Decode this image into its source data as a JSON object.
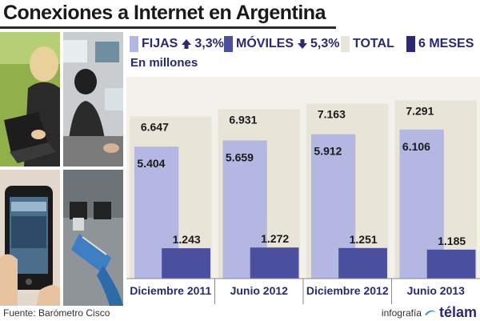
{
  "title": "Conexiones a Internet en Argentina",
  "subtitle": "En millones",
  "legend": {
    "fijas": {
      "label": "FIJAS",
      "change": "3,3%",
      "direction": "up",
      "color": "#b4b7e2"
    },
    "moviles": {
      "label": "MÓVILES",
      "change": "5,3%",
      "direction": "down",
      "color": "#4a4f9e"
    },
    "total": {
      "label": "TOTAL",
      "color": "#e8e4d8"
    },
    "period": {
      "label": "6 MESES",
      "color": "#2a2a70"
    }
  },
  "footer": {
    "source": "Fuente: Barómetro Cisco",
    "credit": "infografía",
    "brand": "télam"
  },
  "icons": [
    "laptop-photo",
    "office-photo",
    "smartphone-photo",
    "ethernet-cable-photo",
    "arrow-up-icon",
    "arrow-down-icon",
    "telam-logo-icon"
  ],
  "chart_data": {
    "type": "bar",
    "categories": [
      "Diciembre 2011",
      "Junio 2012",
      "Diciembre 2012",
      "Junio 2013"
    ],
    "series": [
      {
        "name": "TOTAL",
        "values": [
          6.647,
          6.931,
          7.163,
          7.291
        ],
        "labels": [
          "6.647",
          "6.931",
          "7.163",
          "7.291"
        ],
        "color": "#e8e4d8"
      },
      {
        "name": "FIJAS",
        "values": [
          5.404,
          5.659,
          5.912,
          6.106
        ],
        "labels": [
          "5.404",
          "5.659",
          "5.912",
          "6.106"
        ],
        "color": "#b4b7e2"
      },
      {
        "name": "MÓVILES",
        "values": [
          1.243,
          1.272,
          1.251,
          1.185
        ],
        "labels": [
          "1.243",
          "1.272",
          "1.251",
          "1.185"
        ],
        "color": "#4a4f9e"
      }
    ],
    "ylim": [
      0,
      8
    ],
    "grid": false,
    "legend_position": "top"
  }
}
